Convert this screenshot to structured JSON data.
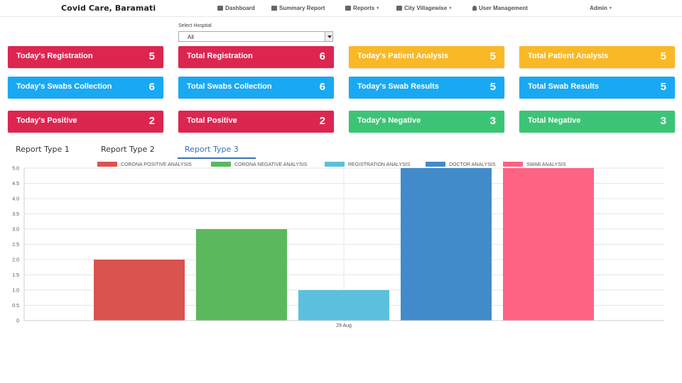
{
  "navbar": {
    "brand": "Covid Care, Baramati",
    "items": [
      {
        "label": "Dashboard",
        "icon": "dashboard-icon"
      },
      {
        "label": "Summary Report",
        "icon": "calendar-icon"
      },
      {
        "label": "Reports",
        "icon": "flag-icon",
        "caret": "▾"
      },
      {
        "label": "City Villagewise",
        "icon": "flag-icon",
        "caret": "▾"
      },
      {
        "label": "User Management",
        "icon": "user-icon"
      },
      {
        "label": "Admin",
        "caret": "▾"
      }
    ]
  },
  "filter": {
    "label": "Select Hospital",
    "value": "All"
  },
  "cards": [
    {
      "label": "Today's Registration",
      "value": "5",
      "color": "#dc2650"
    },
    {
      "label": "Total Registration",
      "value": "6",
      "color": "#dc2650"
    },
    {
      "label": "Today's Patient Analysis",
      "value": "5",
      "color": "#f9b926"
    },
    {
      "label": "Total Patient Analysis",
      "value": "5",
      "color": "#f9b926"
    },
    {
      "label": "Today's Swabs Collection",
      "value": "6",
      "color": "#19a9f3"
    },
    {
      "label": "Total Swabs Collection",
      "value": "6",
      "color": "#19a9f3"
    },
    {
      "label": "Today's Swab Results",
      "value": "5",
      "color": "#19a9f3"
    },
    {
      "label": "Total Swab Results",
      "value": "5",
      "color": "#19a9f3"
    },
    {
      "label": "Today's Positive",
      "value": "2",
      "color": "#dc2650"
    },
    {
      "label": "Total Positive",
      "value": "2",
      "color": "#dc2650"
    },
    {
      "label": "Today's Negative",
      "value": "3",
      "color": "#3cc476"
    },
    {
      "label": "Total Negative",
      "value": "3",
      "color": "#3cc476"
    }
  ],
  "tabs": [
    {
      "label": "Report Type 1",
      "active": false
    },
    {
      "label": "Report Type 2",
      "active": false
    },
    {
      "label": "Report Type 3",
      "active": true
    }
  ],
  "chart_data": {
    "type": "bar",
    "categories": [
      "29 Aug"
    ],
    "series": [
      {
        "name": "CORONA POSITIVE ANALYSIS",
        "values": [
          2
        ],
        "color": "#d9534f"
      },
      {
        "name": "CORONA NEGATIVE ANALYSIS",
        "values": [
          3
        ],
        "color": "#5cb85c"
      },
      {
        "name": "REGISTRATION ANALYSIS",
        "values": [
          1
        ],
        "color": "#5bc0de"
      },
      {
        "name": "DOCTOR ANALYSIS",
        "values": [
          5
        ],
        "color": "#428bca"
      },
      {
        "name": "SWAB ANALYSIS",
        "values": [
          5
        ],
        "color": "#ff6384"
      }
    ],
    "yticks": [
      "0",
      "0.5",
      "1.0",
      "1.5",
      "2.0",
      "2.5",
      "3.0",
      "3.5",
      "4.0",
      "4.5",
      "5.0"
    ],
    "ylim": [
      0,
      5
    ],
    "grid": true,
    "legend": "top"
  }
}
